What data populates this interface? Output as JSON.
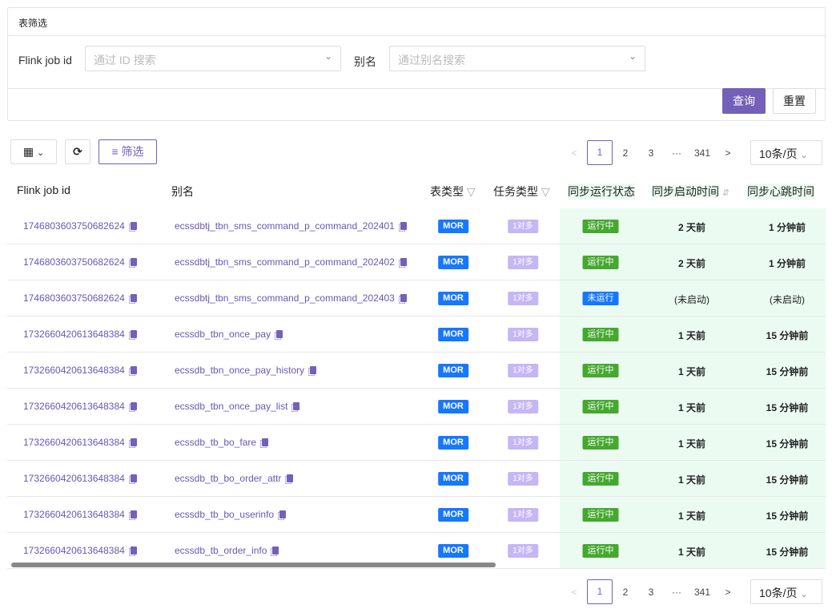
{
  "filter": {
    "title": "表筛选",
    "job_label": "Flink job id",
    "job_placeholder": "通过 ID 搜索",
    "alias_label": "别名",
    "alias_placeholder": "通过别名搜索",
    "query": "查询",
    "reset": "重置"
  },
  "toolbar": {
    "filter_label": "筛选"
  },
  "pagination": {
    "pages": [
      "1",
      "2",
      "3",
      "···",
      "341"
    ],
    "current": "1",
    "page_size": "10条/页"
  },
  "columns": [
    "Flink job id",
    "别名",
    "表类型",
    "任务类型",
    "同步运行状态",
    "同步启动时间",
    "同步心跳时间"
  ],
  "colors": {
    "accent": "#7460b8",
    "mor": "#1677ff",
    "task": "#c5b6f5",
    "running": "#45a82f",
    "stopped": "#1677ff",
    "status_bg": "#ebfbf1"
  },
  "rows": [
    {
      "id": "1746803603750682624",
      "alias": "ecssdbtj_tbn_sms_command_p_command_202401",
      "type": "MOR",
      "task": "1对多",
      "status": "运行中",
      "start": "2 天前",
      "beat": "1 分钟前"
    },
    {
      "id": "1746803603750682624",
      "alias": "ecssdbtj_tbn_sms_command_p_command_202402",
      "type": "MOR",
      "task": "1对多",
      "status": "运行中",
      "start": "2 天前",
      "beat": "1 分钟前"
    },
    {
      "id": "1746803603750682624",
      "alias": "ecssdbtj_tbn_sms_command_p_command_202403",
      "type": "MOR",
      "task": "1对多",
      "status": "未运行",
      "start": "(未启动)",
      "beat": "(未启动)"
    },
    {
      "id": "1732660420613648384",
      "alias": "ecssdb_tbn_once_pay",
      "type": "MOR",
      "task": "1对多",
      "status": "运行中",
      "start": "1 天前",
      "beat": "15 分钟前"
    },
    {
      "id": "1732660420613648384",
      "alias": "ecssdb_tbn_once_pay_history",
      "type": "MOR",
      "task": "1对多",
      "status": "运行中",
      "start": "1 天前",
      "beat": "15 分钟前"
    },
    {
      "id": "1732660420613648384",
      "alias": "ecssdb_tbn_once_pay_list",
      "type": "MOR",
      "task": "1对多",
      "status": "运行中",
      "start": "1 天前",
      "beat": "15 分钟前"
    },
    {
      "id": "1732660420613648384",
      "alias": "ecssdb_tb_bo_fare",
      "type": "MOR",
      "task": "1对多",
      "status": "运行中",
      "start": "1 天前",
      "beat": "15 分钟前"
    },
    {
      "id": "1732660420613648384",
      "alias": "ecssdb_tb_bo_order_attr",
      "type": "MOR",
      "task": "1对多",
      "status": "运行中",
      "start": "1 天前",
      "beat": "15 分钟前"
    },
    {
      "id": "1732660420613648384",
      "alias": "ecssdb_tb_bo_userinfo",
      "type": "MOR",
      "task": "1对多",
      "status": "运行中",
      "start": "1 天前",
      "beat": "15 分钟前"
    },
    {
      "id": "1732660420613648384",
      "alias": "ecssdb_tb_order_info",
      "type": "MOR",
      "task": "1对多",
      "status": "运行中",
      "start": "1 天前",
      "beat": "15 分钟前"
    }
  ]
}
